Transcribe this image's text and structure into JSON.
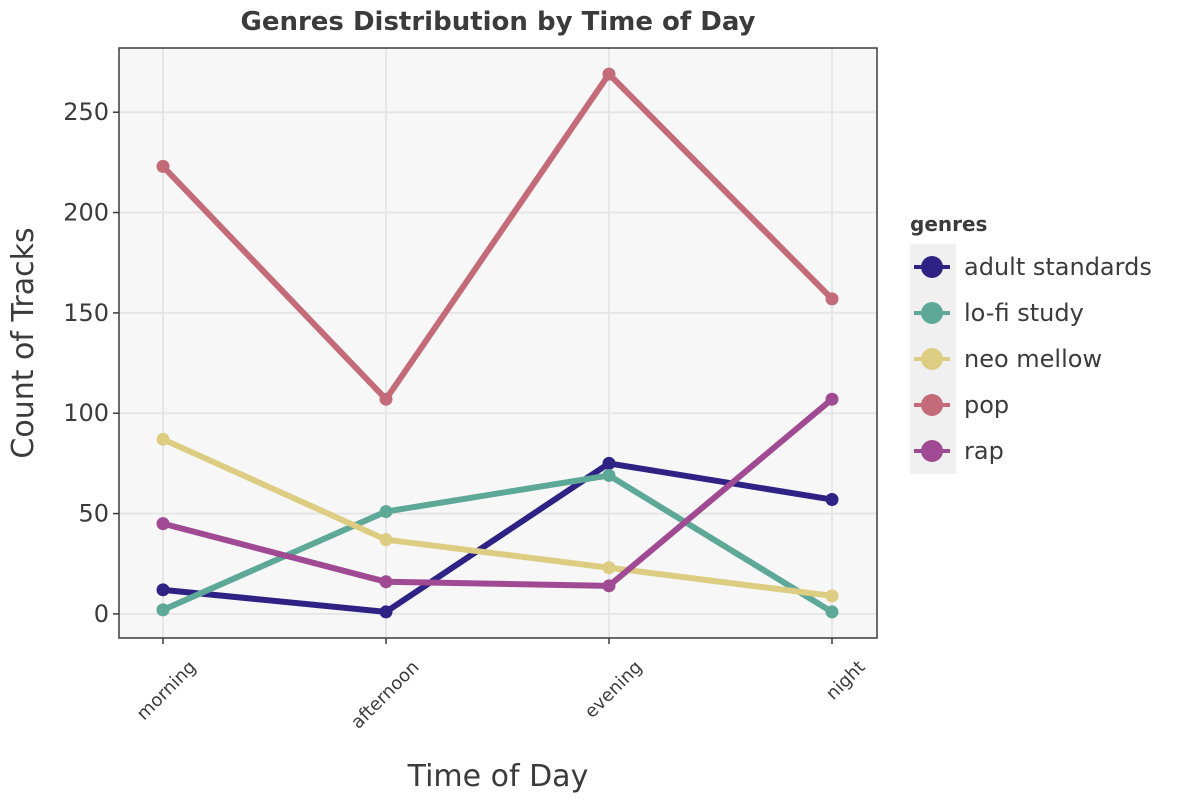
{
  "chart_data": {
    "type": "line",
    "title": "Genres Distribution by Time of Day",
    "xlabel": "Time of Day",
    "ylabel": "Count of Tracks",
    "categories": [
      "morning",
      "afternoon",
      "evening",
      "night"
    ],
    "ylim": [
      -12,
      282
    ],
    "yticks": [
      0,
      50,
      100,
      150,
      200,
      250
    ],
    "grid": true,
    "legend": {
      "title": "genres",
      "position": "right"
    },
    "series": [
      {
        "name": "adult standards",
        "color": "#2e2385",
        "values": [
          12,
          1,
          75,
          57
        ]
      },
      {
        "name": "lo-fi study",
        "color": "#5ea898",
        "values": [
          2,
          51,
          69,
          1
        ]
      },
      {
        "name": "neo mellow",
        "color": "#dccd82",
        "values": [
          87,
          37,
          23,
          9
        ]
      },
      {
        "name": "pop",
        "color": "#c46b79",
        "values": [
          223,
          107,
          269,
          157
        ]
      },
      {
        "name": "rap",
        "color": "#a04a94",
        "values": [
          45,
          16,
          14,
          107
        ]
      }
    ]
  }
}
